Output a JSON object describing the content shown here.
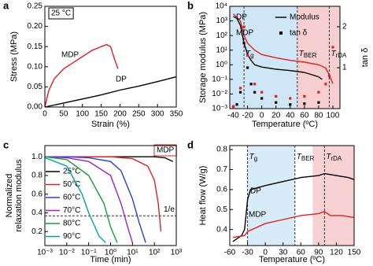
{
  "chart_data": [
    {
      "type": "line",
      "label": "a",
      "xlabel": "Strain (%)",
      "ylabel": [
        "Stress (MPa)"
      ],
      "xlim": [
        0,
        350
      ],
      "xticks": [
        0,
        50,
        100,
        150,
        200,
        250,
        300,
        350
      ],
      "ylim": [
        0,
        0.25
      ],
      "yticks": [
        {
          "value": 0,
          "label": "0.00"
        },
        0.05,
        {
          "value": 0.1,
          "label": "0.10"
        },
        0.15,
        {
          "value": 0.2,
          "label": "0.20"
        },
        0.25
      ],
      "legend": "inline",
      "boxes": [
        {
          "text": "25 °C",
          "color": "#000000"
        }
      ],
      "series": [
        {
          "name": "MDP",
          "color": "#e02020",
          "x": [
            0,
            10,
            25,
            50,
            75,
            100,
            125,
            150,
            165,
            175,
            185,
            195
          ],
          "values": [
            0,
            0.04,
            0.07,
            0.095,
            0.11,
            0.125,
            0.14,
            0.15,
            0.155,
            0.15,
            0.12,
            0.095
          ]
        },
        {
          "name": "DP",
          "color": "#000000",
          "x": [
            0,
            50,
            100,
            150,
            200,
            250,
            300,
            350
          ],
          "values": [
            0,
            0.01,
            0.02,
            0.03,
            0.042,
            0.052,
            0.063,
            0.075
          ]
        }
      ]
    },
    {
      "type": "line",
      "label": "b",
      "xlabel": "Temperature (ºC)",
      "ylabel": [
        "Storage modulus (MPa)"
      ],
      "y2label": "tan δ",
      "xlim": [
        -45,
        110
      ],
      "xticks": [
        -40,
        -20,
        0,
        20,
        40,
        60,
        80,
        100
      ],
      "ylog": true,
      "ylim": [
        0.001,
        10000
      ],
      "yticks": [
        {
          "value": 0.001,
          "label": "10⁻³"
        },
        {
          "value": 0.01,
          "label": "10⁻²"
        },
        {
          "value": 0.1,
          "label": "10⁻¹"
        },
        {
          "value": 1,
          "label": "10⁰"
        },
        {
          "value": 10,
          "label": "10¹"
        },
        {
          "value": 100,
          "label": "10²"
        },
        {
          "value": 1000,
          "label": "10³"
        },
        {
          "value": 10000,
          "label": "10⁴"
        }
      ],
      "y2lim": [
        0,
        2.5
      ],
      "y2ticks": [
        1,
        2
      ],
      "regions": [
        {
          "from": -45,
          "to": 50,
          "color": "#cfe6f6"
        },
        {
          "from": 50,
          "to": 110,
          "color": "#f8cfd0"
        }
      ],
      "annotations": [
        {
          "text": "T",
          "sub": "g",
          "x": -25
        },
        {
          "text": "T",
          "sub": "BER",
          "x": 50
        },
        {
          "text": "T",
          "sub": "rDA",
          "x": 95
        }
      ],
      "legend_items": [
        {
          "label": "DP",
          "color": "#000000"
        },
        {
          "label": "MDP",
          "color": "#e02020"
        },
        {
          "label": "Modulus",
          "style": "line"
        },
        {
          "label": "tan δ",
          "style": "dots"
        }
      ],
      "series": [
        {
          "color": "#000000",
          "style": "line",
          "x": [
            -40,
            -35,
            -30,
            -25,
            -20,
            -15,
            -10,
            0,
            20,
            40,
            60,
            80,
            85
          ],
          "values": [
            2000,
            1500,
            500,
            30,
            5,
            2,
            1,
            0.7,
            0.5,
            0.4,
            0.3,
            0.15,
            0.1
          ]
        },
        {
          "color": "#e02020",
          "style": "line",
          "x": [
            -40,
            -30,
            -25,
            -20,
            -10,
            0,
            20,
            40,
            60,
            80,
            90,
            95,
            100
          ],
          "values": [
            3000,
            1000,
            100,
            30,
            10,
            5,
            3,
            2,
            1.5,
            1,
            0.6,
            0.2,
            0.05
          ]
        },
        {
          "color": "#000000",
          "style": "dots",
          "axis": "y2",
          "x": [
            -40,
            -35,
            -30,
            -25,
            -20,
            -15,
            -10,
            0,
            20,
            40,
            60,
            80
          ],
          "values": [
            0.05,
            0.1,
            0.4,
            1.6,
            1.0,
            0.6,
            0.4,
            0.25,
            0.15,
            0.1,
            0.12,
            0.15
          ]
        },
        {
          "color": "#e02020",
          "style": "dots",
          "axis": "y2",
          "x": [
            -40,
            -30,
            -25,
            -20,
            -10,
            0,
            20,
            40,
            60,
            80,
            90,
            95,
            100
          ],
          "values": [
            0.05,
            0.5,
            2.0,
            1.3,
            0.6,
            0.4,
            0.3,
            0.25,
            0.3,
            0.4,
            0.6,
            0.8,
            1.5
          ]
        }
      ]
    },
    {
      "type": "line",
      "label": "c",
      "xlabel": "Time (min)",
      "ylabel": [
        "Normalized",
        "relaxation modulus"
      ],
      "xlog": true,
      "xlim": [
        0.001,
        1000
      ],
      "xticks": [
        {
          "value": 0.001,
          "label": "10⁻³"
        },
        {
          "value": 0.01,
          "label": "10⁻²"
        },
        {
          "value": 0.1,
          "label": "10⁻¹"
        },
        {
          "value": 1,
          "label": "10⁰"
        },
        {
          "value": 10,
          "label": "10¹"
        },
        {
          "value": 100,
          "label": "10²"
        },
        {
          "value": 1000,
          "label": "10³"
        }
      ],
      "ylim": [
        0.05,
        1.12
      ],
      "yticks": [
        0.2,
        0.4,
        0.6,
        0.8,
        {
          "value": 1,
          "label": "1.0"
        }
      ],
      "hline": {
        "value": 0.368,
        "label": "1/e"
      },
      "boxes": [
        {
          "text": "MDP",
          "color": "#e02020"
        }
      ],
      "legend": "left",
      "series": [
        {
          "name": "25°C",
          "color": "#000000",
          "x": [
            0.001,
            0.01,
            0.1,
            1,
            10,
            100,
            300,
            700
          ],
          "values": [
            1,
            1,
            1,
            1,
            1,
            1,
            0.99,
            0.95
          ]
        },
        {
          "name": "50°C",
          "color": "#e02020",
          "x": [
            0.001,
            0.01,
            0.1,
            1,
            10,
            50,
            100,
            150,
            200
          ],
          "values": [
            1,
            1,
            1,
            1,
            0.98,
            0.9,
            0.75,
            0.5,
            0.2
          ]
        },
        {
          "name": "60°C",
          "color": "#2040e0",
          "x": [
            0.001,
            0.01,
            0.1,
            1,
            3,
            10,
            20,
            40
          ],
          "values": [
            1,
            1,
            0.99,
            0.95,
            0.85,
            0.55,
            0.3,
            0.08
          ]
        },
        {
          "name": "70°C",
          "color": "#a020c0",
          "x": [
            0.001,
            0.01,
            0.1,
            1,
            3,
            6,
            10
          ],
          "values": [
            1,
            0.99,
            0.95,
            0.8,
            0.5,
            0.25,
            0.08
          ]
        },
        {
          "name": "80°C",
          "color": "#10a030",
          "x": [
            0.001,
            0.01,
            0.1,
            0.5,
            1,
            2
          ],
          "values": [
            1,
            0.97,
            0.8,
            0.5,
            0.25,
            0.08
          ]
        },
        {
          "name": "90°C",
          "color": "#00a0b0",
          "x": [
            0.001,
            0.01,
            0.05,
            0.1,
            0.3,
            0.6
          ],
          "values": [
            0.99,
            0.9,
            0.6,
            0.4,
            0.15,
            0.08
          ]
        }
      ]
    },
    {
      "type": "line",
      "label": "d",
      "xlabel": "Temperature (ºC)",
      "ylabel": [
        "Heat flow (W/g)"
      ],
      "xlim": [
        -60,
        150
      ],
      "xticks": [
        -60,
        -30,
        0,
        30,
        60,
        90,
        120,
        150
      ],
      "ylim": [
        0.32,
        0.82
      ],
      "yticks": [
        0.4,
        0.5,
        0.6,
        0.7,
        0.8
      ],
      "regions": [
        {
          "from": -30,
          "to": 50,
          "color": "#d8ebf8"
        },
        {
          "from": 80,
          "to": 150,
          "color": "#f8d2d3"
        }
      ],
      "annotations": [
        {
          "text": "T",
          "sub": "g",
          "x": -30
        },
        {
          "text": "T",
          "sub": "BER",
          "x": 50
        },
        {
          "text": "T",
          "sub": "rDA",
          "x": 100
        }
      ],
      "legend": "inline",
      "series": [
        {
          "name": "DP",
          "color": "#000000",
          "x": [
            -55,
            -40,
            -35,
            -30,
            -25,
            0,
            30,
            60,
            90,
            100,
            120,
            140,
            150
          ],
          "values": [
            0.34,
            0.37,
            0.4,
            0.55,
            0.6,
            0.62,
            0.64,
            0.66,
            0.67,
            0.68,
            0.67,
            0.66,
            0.65
          ]
        },
        {
          "name": "MDP",
          "color": "#e02020",
          "x": [
            -55,
            -35,
            -30,
            0,
            30,
            60,
            90,
            100,
            110,
            130,
            150
          ],
          "values": [
            0.36,
            0.37,
            0.39,
            0.43,
            0.45,
            0.47,
            0.48,
            0.49,
            0.47,
            0.47,
            0.46
          ]
        }
      ]
    }
  ]
}
